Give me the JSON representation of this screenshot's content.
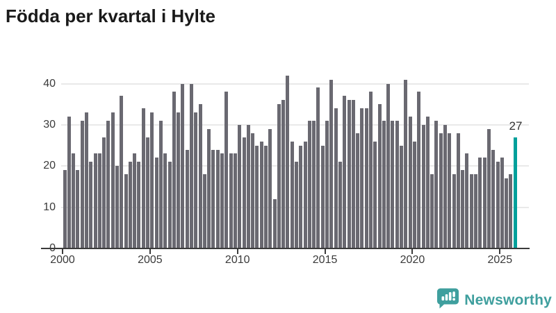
{
  "title": "Födda per kvartal i Hylte",
  "colors": {
    "bar": "#6a6971",
    "highlight": "#00a09b",
    "grid": "#e9e9e9",
    "axis": "#3b3b3b",
    "label_text": "#3a3a3a",
    "title_text": "#1a1a1a",
    "logo_teal": "#3f9f9e"
  },
  "annotation": {
    "label": "27"
  },
  "logo": {
    "text": "Newsworthy",
    "icon": "newsworthy-bars-speech-bubble-icon"
  },
  "chart_data": {
    "type": "bar",
    "title": "Födda per kvartal i Hylte",
    "xlabel": "",
    "ylabel": "",
    "x_unit": "quarter",
    "x_range": [
      "2000 Q1",
      "2025 Q4"
    ],
    "x_tick_labels": [
      "2000",
      "2005",
      "2010",
      "2015",
      "2020",
      "2025"
    ],
    "y_ticks": [
      0,
      10,
      20,
      30,
      40
    ],
    "ylim": [
      0,
      44
    ],
    "grid": "horizontal",
    "legend": "none",
    "highlighted_last_bar": true,
    "last_value_label": "27",
    "values": [
      19,
      32,
      23,
      19,
      31,
      33,
      21,
      23,
      23,
      27,
      31,
      33,
      20,
      37,
      18,
      21,
      23,
      21,
      34,
      27,
      33,
      22,
      31,
      23,
      21,
      38,
      33,
      40,
      24,
      40,
      33,
      35,
      18,
      29,
      24,
      24,
      23,
      38,
      23,
      23,
      30,
      27,
      30,
      28,
      25,
      26,
      25,
      29,
      12,
      35,
      36,
      42,
      26,
      21,
      25,
      26,
      31,
      31,
      39,
      25,
      31,
      41,
      34,
      21,
      37,
      36,
      36,
      28,
      34,
      34,
      38,
      26,
      35,
      31,
      40,
      31,
      31,
      25,
      41,
      32,
      26,
      38,
      30,
      32,
      18,
      31,
      28,
      30,
      28,
      18,
      28,
      19,
      23,
      18,
      18,
      22,
      22,
      29,
      24,
      21,
      22,
      17,
      18,
      27
    ]
  }
}
